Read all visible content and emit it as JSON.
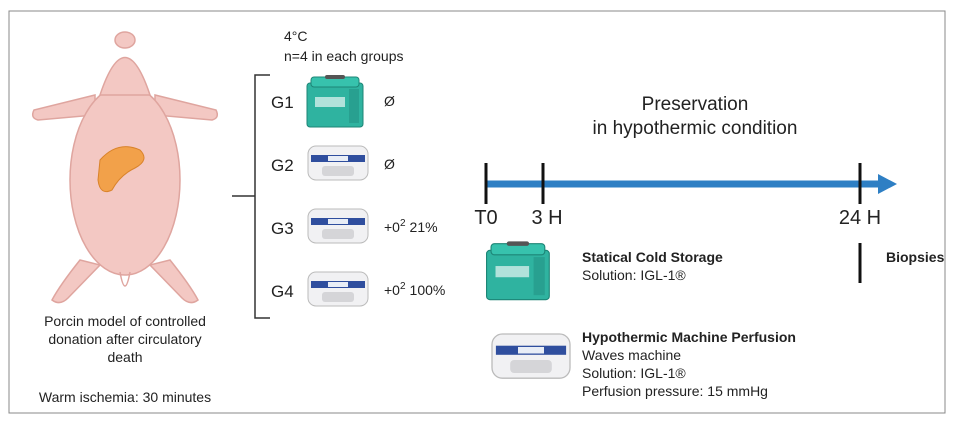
{
  "conditions": {
    "temperature": "4°C",
    "group_size": "n=4 in each groups"
  },
  "groups": [
    {
      "label": "G1",
      "oxygen": {
        "text": "Ø"
      }
    },
    {
      "label": "G2",
      "oxygen": {
        "text": "Ø"
      }
    },
    {
      "label": "G3",
      "oxygen": {
        "prefix": "+0",
        "sup": "2",
        "rest": "21%"
      }
    },
    {
      "label": "G4",
      "oxygen": {
        "prefix": "+0",
        "sup": "2",
        "rest": "100%"
      }
    }
  ],
  "model": {
    "caption": [
      "Porcin model of controlled",
      "donation after circulatory",
      "death"
    ],
    "warm_ischemia": "Warm ischemia: 30 minutes"
  },
  "timeline": {
    "title": [
      "Preservation",
      "in hypothermic condition"
    ],
    "points": [
      "T0",
      "3 H",
      "24 H"
    ],
    "end_label": "Biopsies"
  },
  "legend": [
    {
      "title": "Statical Cold Storage",
      "lines": [
        "Solution: IGL-1®"
      ]
    },
    {
      "title": "Hypothermic Machine Perfusion",
      "lines": [
        "Waves machine",
        "Solution: IGL-1®",
        "Perfusion pressure: 15 mmHg"
      ]
    }
  ]
}
